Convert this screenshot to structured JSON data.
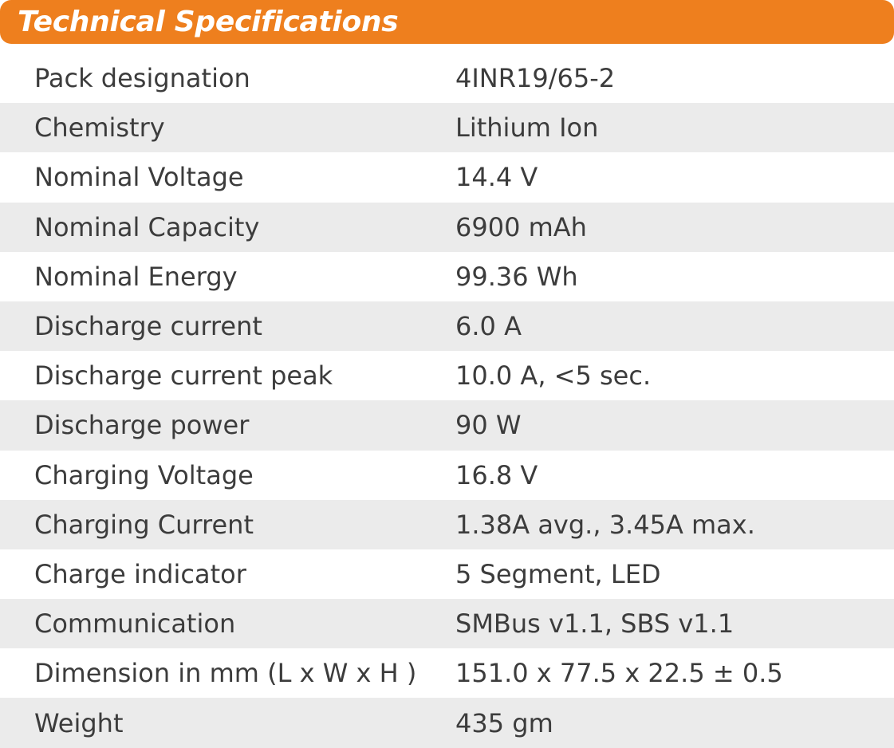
{
  "header": {
    "title": "Technical Specifications",
    "color": "#EE7F1E"
  },
  "rows": [
    {
      "label": "Pack designation",
      "value": "4INR19/65-2"
    },
    {
      "label": "Chemistry",
      "value": "Lithium Ion"
    },
    {
      "label": "Nominal Voltage",
      "value": "14.4 V"
    },
    {
      "label": "Nominal Capacity",
      "value": "6900 mAh"
    },
    {
      "label": "Nominal Energy",
      "value": "99.36 Wh"
    },
    {
      "label": "Discharge current",
      "value": "6.0 A"
    },
    {
      "label": "Discharge current peak",
      "value": "10.0 A, <5 sec."
    },
    {
      "label": "Discharge power",
      "value": "90 W"
    },
    {
      "label": "Charging Voltage",
      "value": "16.8 V"
    },
    {
      "label": "Charging Current",
      "value": "1.38A avg., 3.45A max."
    },
    {
      "label": "Charge indicator",
      "value": "5 Segment, LED"
    },
    {
      "label": "Communication",
      "value": "SMBus v1.1, SBS v1.1"
    },
    {
      "label": "Dimension in mm (L x W x H )",
      "value": "151.0 x 77.5 x 22.5 ± 0.5"
    },
    {
      "label": "Weight",
      "value": "435 gm"
    }
  ]
}
